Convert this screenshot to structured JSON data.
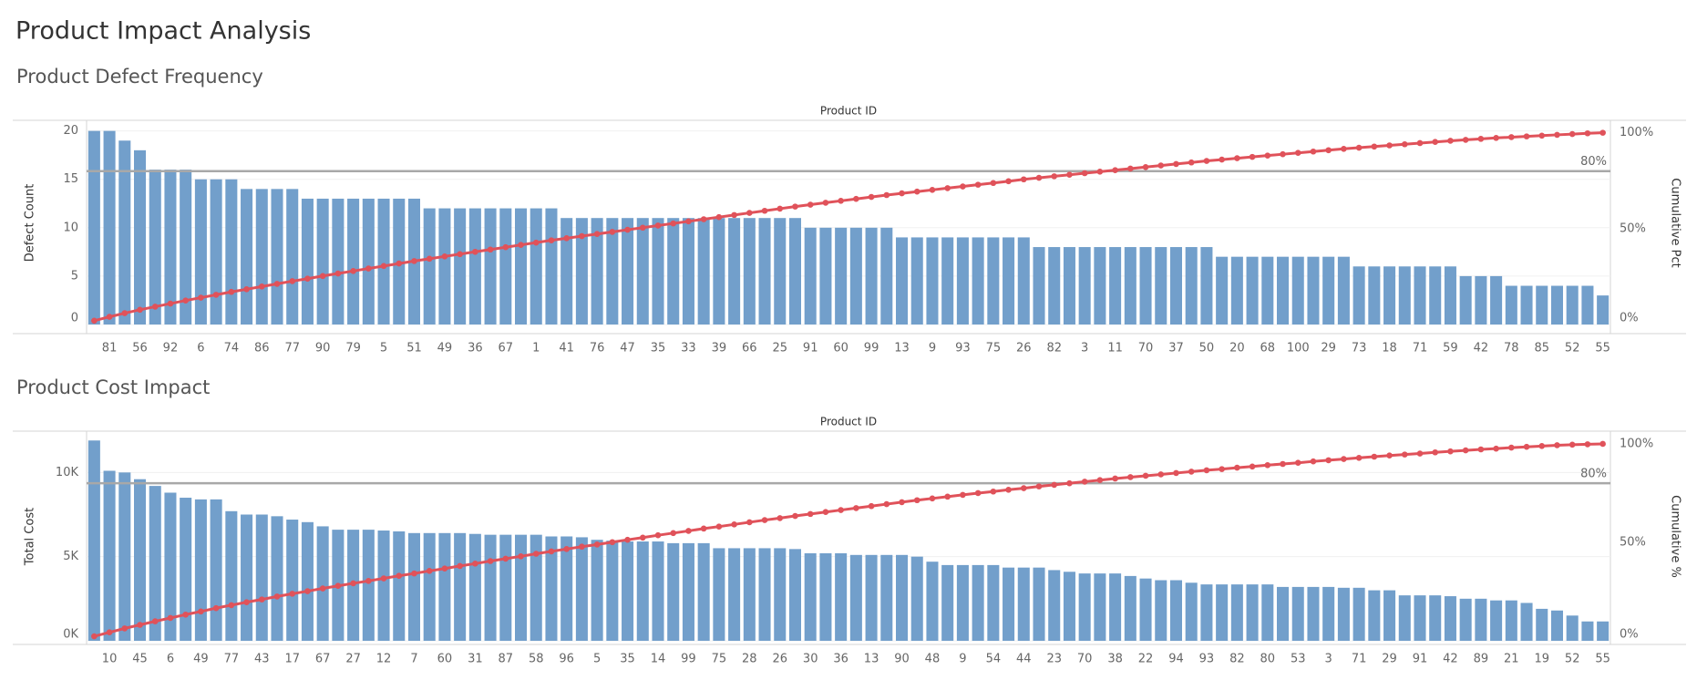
{
  "title": "Product Impact Analysis",
  "chart_data": [
    {
      "type": "pareto",
      "title": "Product Defect Frequency",
      "x_label": "Product ID",
      "y_label": "Defect Count",
      "y2_label": "Cumulative Pct",
      "categories": [
        null,
        "81",
        null,
        "56",
        null,
        "92",
        null,
        "6",
        null,
        "74",
        null,
        "86",
        null,
        "77",
        null,
        "90",
        null,
        "79",
        null,
        "5",
        null,
        "51",
        null,
        "49",
        null,
        "36",
        null,
        "67",
        null,
        "1",
        null,
        "41",
        null,
        "76",
        null,
        "47",
        null,
        "35",
        null,
        "33",
        null,
        "39",
        null,
        "66",
        null,
        "25",
        null,
        "91",
        null,
        "60",
        null,
        "99",
        null,
        "13",
        null,
        "9",
        null,
        "93",
        null,
        "75",
        null,
        "26",
        null,
        "82",
        null,
        "3",
        null,
        "11",
        null,
        "70",
        null,
        "37",
        null,
        "50",
        null,
        "20",
        null,
        "68",
        null,
        "100",
        null,
        "29",
        null,
        "73",
        null,
        "18",
        null,
        "71",
        null,
        "59",
        null,
        "42",
        null,
        "78",
        null,
        "85",
        null,
        "52",
        null,
        "55"
      ],
      "series": [
        {
          "type": "bar",
          "color": "#729fcb",
          "values": [
            20,
            20,
            19,
            18,
            16,
            16,
            16,
            15,
            15,
            15,
            14,
            14,
            14,
            14,
            13,
            13,
            13,
            13,
            13,
            13,
            13,
            13,
            12,
            12,
            12,
            12,
            12,
            12,
            12,
            12,
            12,
            11,
            11,
            11,
            11,
            11,
            11,
            11,
            11,
            11,
            11,
            11,
            11,
            11,
            11,
            11,
            11,
            10,
            10,
            10,
            10,
            10,
            10,
            9,
            9,
            9,
            9,
            9,
            9,
            9,
            9,
            9,
            8,
            8,
            8,
            8,
            8,
            8,
            8,
            8,
            8,
            8,
            8,
            8,
            7,
            7,
            7,
            7,
            7,
            7,
            7,
            7,
            7,
            6,
            6,
            6,
            6,
            6,
            6,
            6,
            5,
            5,
            5,
            4,
            4,
            4,
            4,
            4,
            4,
            3
          ]
        },
        {
          "type": "line",
          "axis": "y2",
          "color": "#e0525a",
          "values": [
            2.0,
            4.0,
            5.9,
            7.7,
            9.3,
            10.9,
            12.5,
            14.0,
            15.5,
            17.0,
            18.4,
            19.8,
            21.2,
            22.6,
            23.9,
            25.3,
            26.6,
            27.9,
            29.2,
            30.5,
            31.8,
            33.1,
            34.3,
            35.5,
            36.7,
            37.9,
            39.1,
            40.3,
            41.5,
            42.7,
            43.9,
            45.0,
            46.1,
            47.2,
            48.3,
            49.4,
            50.5,
            51.6,
            52.7,
            53.8,
            54.9,
            56.0,
            57.1,
            58.2,
            59.3,
            60.4,
            61.5,
            62.5,
            63.5,
            64.5,
            65.5,
            66.5,
            67.5,
            68.4,
            69.3,
            70.2,
            71.1,
            72.0,
            72.9,
            73.8,
            74.7,
            75.7,
            76.5,
            77.3,
            78.1,
            78.9,
            79.7,
            80.5,
            81.3,
            82.1,
            82.9,
            83.7,
            84.5,
            85.3,
            86.0,
            86.7,
            87.4,
            88.1,
            88.8,
            89.5,
            90.2,
            90.9,
            91.6,
            92.2,
            92.8,
            93.4,
            94.0,
            94.6,
            95.2,
            95.8,
            96.3,
            96.8,
            97.3,
            97.7,
            98.1,
            98.5,
            98.9,
            99.3,
            99.7,
            100
          ]
        }
      ],
      "ylim": [
        0,
        21
      ],
      "yticks": [
        0,
        5,
        10,
        15,
        20
      ],
      "y2lim": [
        0,
        106
      ],
      "y2ticks": [
        {
          "value": 0,
          "label": "0%"
        },
        {
          "value": 50,
          "label": "50%"
        },
        {
          "value": 100,
          "label": "100%"
        }
      ],
      "reference_line": {
        "value": 80,
        "label": "80%"
      },
      "grid": true
    },
    {
      "type": "pareto",
      "title": "Product Cost Impact",
      "x_label": "Product ID",
      "y_label": "Total Cost",
      "y2_label": "Cumulative %",
      "categories": [
        null,
        "10",
        null,
        "45",
        null,
        "6",
        null,
        "49",
        null,
        "77",
        null,
        "43",
        null,
        "17",
        null,
        "67",
        null,
        "27",
        null,
        "12",
        null,
        "7",
        null,
        "60",
        null,
        "31",
        null,
        "87",
        null,
        "58",
        null,
        "96",
        null,
        "5",
        null,
        "35",
        null,
        "14",
        null,
        "99",
        null,
        "75",
        null,
        "28",
        null,
        "26",
        null,
        "30",
        null,
        "36",
        null,
        "13",
        null,
        "90",
        null,
        "48",
        null,
        "9",
        null,
        "54",
        null,
        "44",
        null,
        "23",
        null,
        "70",
        null,
        "38",
        null,
        "22",
        null,
        "94",
        null,
        "93",
        null,
        "82",
        null,
        "80",
        null,
        "53",
        null,
        "3",
        null,
        "71",
        null,
        "29",
        null,
        "91",
        null,
        "42",
        null,
        "89",
        null,
        "21",
        null,
        "19",
        null,
        "52",
        null,
        "55"
      ],
      "series": [
        {
          "type": "bar",
          "color": "#729fcb",
          "values": [
            11900,
            10100,
            10000,
            9600,
            9200,
            8800,
            8500,
            8400,
            8400,
            7700,
            7500,
            7500,
            7400,
            7200,
            7050,
            6800,
            6600,
            6600,
            6600,
            6550,
            6500,
            6400,
            6400,
            6400,
            6400,
            6350,
            6300,
            6300,
            6300,
            6300,
            6200,
            6200,
            6150,
            6000,
            5950,
            5900,
            5900,
            5900,
            5800,
            5800,
            5800,
            5500,
            5500,
            5500,
            5500,
            5500,
            5450,
            5200,
            5200,
            5200,
            5100,
            5100,
            5100,
            5100,
            5000,
            4700,
            4500,
            4500,
            4500,
            4500,
            4350,
            4350,
            4350,
            4200,
            4100,
            4000,
            4000,
            4000,
            3850,
            3700,
            3600,
            3600,
            3450,
            3350,
            3350,
            3350,
            3350,
            3350,
            3200,
            3200,
            3200,
            3200,
            3150,
            3150,
            3000,
            3000,
            2700,
            2700,
            2700,
            2650,
            2500,
            2500,
            2400,
            2400,
            2250,
            1900,
            1800,
            1500,
            1150,
            1150
          ]
        },
        {
          "type": "line",
          "axis": "y2",
          "color": "#e0525a",
          "values": [
            2.3,
            4.3,
            6.3,
            8.1,
            9.9,
            11.6,
            13.3,
            14.9,
            16.6,
            18.1,
            19.6,
            21.0,
            22.5,
            23.9,
            25.2,
            26.6,
            27.9,
            29.2,
            30.4,
            31.7,
            33.0,
            34.2,
            35.5,
            36.7,
            38.0,
            39.2,
            40.5,
            41.7,
            42.9,
            44.2,
            45.4,
            46.6,
            47.8,
            48.9,
            50.1,
            51.3,
            52.4,
            53.6,
            54.7,
            55.8,
            57.0,
            58.0,
            59.1,
            60.2,
            61.3,
            62.3,
            63.4,
            64.4,
            65.4,
            66.4,
            67.4,
            68.4,
            69.4,
            70.4,
            71.4,
            72.3,
            73.2,
            74.1,
            75.0,
            75.8,
            76.7,
            77.5,
            78.4,
            79.2,
            80.0,
            80.8,
            81.6,
            82.4,
            83.1,
            83.8,
            84.5,
            85.2,
            85.9,
            86.6,
            87.2,
            87.9,
            88.5,
            89.2,
            89.8,
            90.4,
            91.1,
            91.7,
            92.3,
            92.9,
            93.5,
            94.1,
            94.6,
            95.1,
            95.7,
            96.2,
            96.7,
            97.2,
            97.6,
            98.1,
            98.5,
            98.9,
            99.3,
            99.6,
            99.8,
            100
          ]
        }
      ],
      "ylim": [
        0,
        12400
      ],
      "yticks": [
        {
          "value": 0,
          "label": "0K"
        },
        {
          "value": 5000,
          "label": "5K"
        },
        {
          "value": 10000,
          "label": "10K"
        }
      ],
      "y2lim": [
        0,
        106
      ],
      "y2ticks": [
        {
          "value": 0,
          "label": "0%"
        },
        {
          "value": 50,
          "label": "50%"
        },
        {
          "value": 100,
          "label": "100%"
        }
      ],
      "reference_line": {
        "value": 80,
        "label": "80%"
      },
      "grid": true
    }
  ]
}
